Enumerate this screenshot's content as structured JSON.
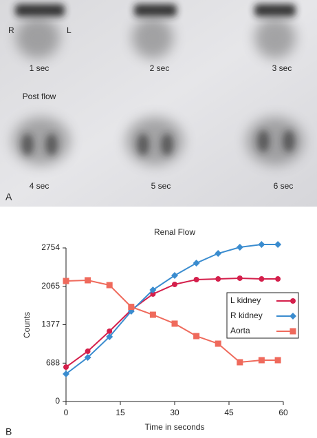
{
  "panel_a": {
    "left_label": "R",
    "right_label": "L",
    "frame_labels": [
      "1 sec",
      "2 sec",
      "3 sec",
      "4 sec",
      "5 sec",
      "6 sec"
    ],
    "section_label": "Post flow",
    "panel_label": "A"
  },
  "chart_data": {
    "type": "line",
    "title": "Renal Flow",
    "panel_label": "B",
    "x_label": "Time in seconds",
    "y_label": "Counts",
    "xlim": [
      0,
      60
    ],
    "xticks": [
      0,
      15,
      30,
      45,
      60
    ],
    "ylim": [
      0,
      2754
    ],
    "yticks": [
      0,
      688,
      1377,
      2065,
      2754
    ],
    "x": [
      0,
      6,
      12,
      18,
      24,
      30,
      36,
      42,
      48,
      54,
      58.5
    ],
    "series": [
      {
        "name": "L kidney",
        "color": "#d41f4b",
        "marker": "circle",
        "values": [
          617,
          901,
          1260,
          1642,
          1927,
          2100,
          2186,
          2198,
          2211,
          2198,
          2198
        ]
      },
      {
        "name": "R kidney",
        "color": "#3a8ccf",
        "marker": "diamond",
        "values": [
          494,
          790,
          1161,
          1618,
          2000,
          2260,
          2482,
          2655,
          2766,
          2816,
          2816
        ]
      },
      {
        "name": "Aorta",
        "color": "#ef6a5c",
        "marker": "square",
        "values": [
          2161,
          2174,
          2087,
          1697,
          1556,
          1396,
          1173,
          1037,
          704,
          741,
          741
        ]
      }
    ]
  }
}
